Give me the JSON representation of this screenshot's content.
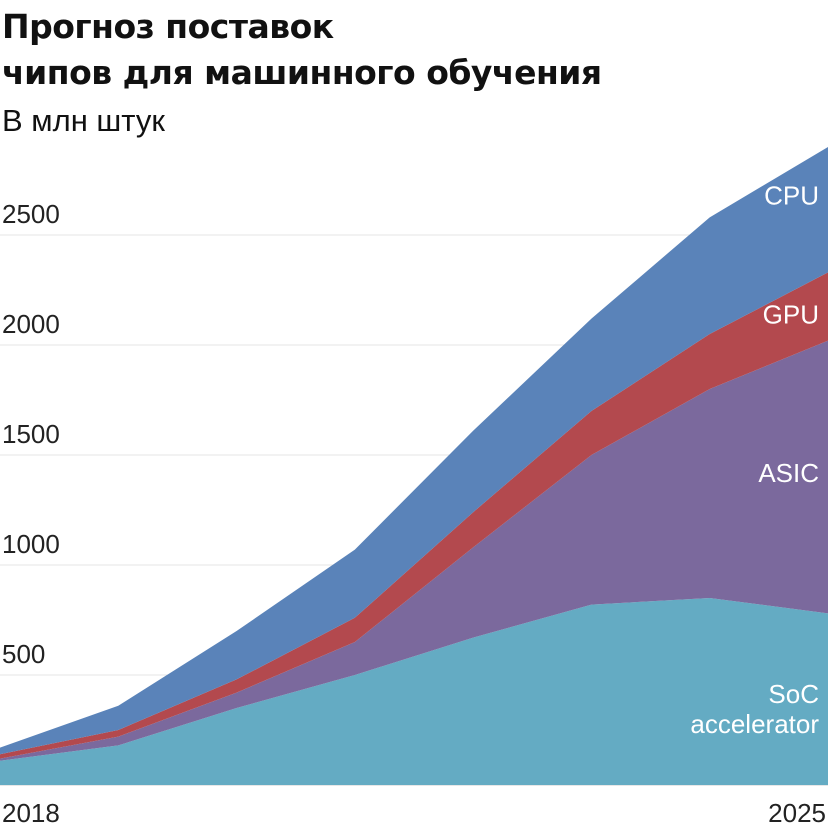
{
  "chart_data": {
    "type": "area",
    "stacked": true,
    "title_lines": [
      "Прогноз поставок",
      "чипов для машинного обучения"
    ],
    "subtitle": "В млн штук",
    "x": [
      2018,
      2019,
      2020,
      2021,
      2022,
      2023,
      2024,
      2025
    ],
    "x_tick_labels": [
      "2018",
      "2025"
    ],
    "y_ticks": [
      "500",
      "1000",
      "1500",
      "2000",
      "2500"
    ],
    "ylim": [
      0,
      2900
    ],
    "grid": true,
    "series": [
      {
        "name": "SoC accelerator",
        "label_lines": [
          "SoC",
          "accelerator"
        ],
        "color": "#64abc3",
        "values": [
          110,
          180,
          350,
          500,
          670,
          820,
          850,
          780
        ]
      },
      {
        "name": "ASIC",
        "label_lines": [
          "ASIC"
        ],
        "color": "#7b699d",
        "values": [
          10,
          40,
          70,
          150,
          410,
          680,
          950,
          1240
        ]
      },
      {
        "name": "GPU",
        "label_lines": [
          "GPU"
        ],
        "color": "#b3494e",
        "values": [
          20,
          30,
          60,
          110,
          160,
          200,
          250,
          310
        ]
      },
      {
        "name": "CPU",
        "label_lines": [
          "CPU"
        ],
        "color": "#5a83b9",
        "values": [
          30,
          110,
          220,
          310,
          370,
          420,
          530,
          570
        ]
      }
    ]
  }
}
